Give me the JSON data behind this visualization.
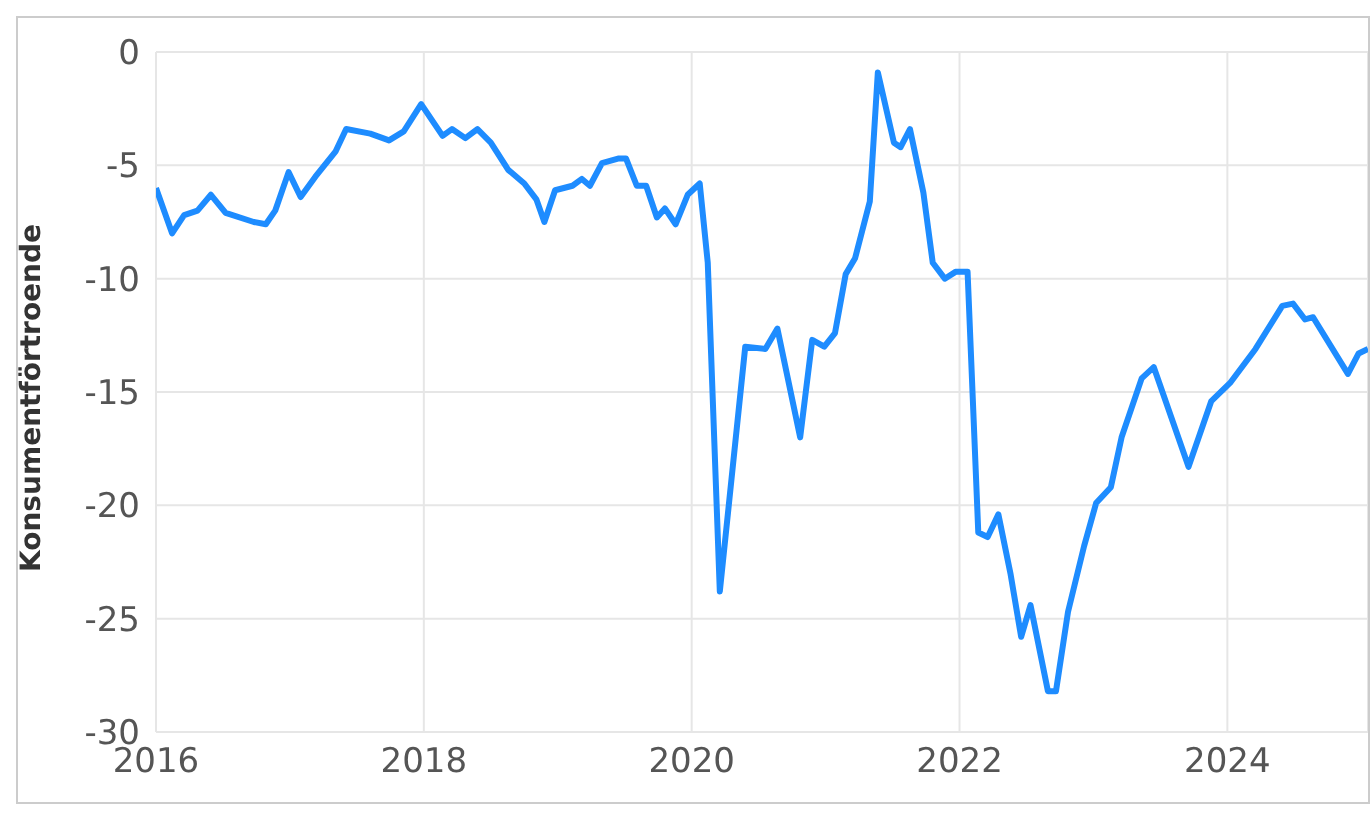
{
  "chart_data": {
    "type": "line",
    "ylabel": "Konsumentförtroende",
    "x": [
      2016.0,
      2016.12,
      2016.21,
      2016.31,
      2016.41,
      2016.52,
      2016.73,
      2016.82,
      2016.89,
      2016.99,
      2017.08,
      2017.19,
      2017.34,
      2017.42,
      2017.6,
      2017.74,
      2017.85,
      2017.98,
      2018.14,
      2018.21,
      2018.31,
      2018.4,
      2018.5,
      2018.63,
      2018.75,
      2018.84,
      2018.9,
      2018.98,
      2019.11,
      2019.18,
      2019.24,
      2019.33,
      2019.45,
      2019.51,
      2019.59,
      2019.66,
      2019.74,
      2019.8,
      2019.88,
      2019.97,
      2020.06,
      2020.12,
      2020.21,
      2020.4,
      2020.55,
      2020.64,
      2020.81,
      2020.9,
      2020.99,
      2021.07,
      2021.15,
      2021.22,
      2021.33,
      2021.39,
      2021.51,
      2021.56,
      2021.63,
      2021.73,
      2021.8,
      2021.89,
      2021.97,
      2022.06,
      2022.14,
      2022.21,
      2022.29,
      2022.38,
      2022.46,
      2022.53,
      2022.66,
      2022.72,
      2022.81,
      2022.93,
      2023.02,
      2023.13,
      2023.21,
      2023.36,
      2023.45,
      2023.71,
      2023.88,
      2024.02,
      2024.21,
      2024.41,
      2024.49,
      2024.58,
      2024.64,
      2024.9,
      2024.98,
      2025.05
    ],
    "series": [
      {
        "color": "#1e8cff",
        "values": [
          -6.0,
          -8.0,
          -7.2,
          -7.0,
          -6.3,
          -7.1,
          -7.5,
          -7.6,
          -7.0,
          -5.3,
          -6.4,
          -5.5,
          -4.4,
          -3.4,
          -3.6,
          -3.9,
          -3.5,
          -2.3,
          -3.7,
          -3.4,
          -3.8,
          -3.4,
          -4.0,
          -5.2,
          -5.8,
          -6.5,
          -7.5,
          -6.1,
          -5.9,
          -5.6,
          -5.9,
          -4.9,
          -4.7,
          -4.7,
          -5.9,
          -5.9,
          -7.3,
          -6.9,
          -7.6,
          -6.3,
          -5.8,
          -9.3,
          -23.8,
          -13.0,
          -13.1,
          -12.2,
          -17.0,
          -12.7,
          -13.0,
          -12.4,
          -9.8,
          -9.1,
          -6.6,
          -0.9,
          -4.0,
          -4.2,
          -3.4,
          -6.2,
          -9.3,
          -10.0,
          -9.7,
          -9.7,
          -21.2,
          -21.4,
          -20.4,
          -23.0,
          -25.8,
          -24.4,
          -28.2,
          -28.2,
          -24.7,
          -21.8,
          -19.9,
          -19.2,
          -17.0,
          -14.4,
          -13.9,
          -18.3,
          -15.4,
          -14.6,
          -13.1,
          -11.2,
          -11.1,
          -11.8,
          -11.7,
          -14.2,
          -13.3,
          -13.1
        ]
      }
    ],
    "xlim": [
      2016,
      2025.05
    ],
    "xticks": [
      2016,
      2018,
      2020,
      2022,
      2024
    ],
    "ylim": [
      -30,
      0
    ],
    "yticks": [
      -30,
      -25,
      -20,
      -15,
      -10,
      -5,
      0
    ],
    "grid": true,
    "legend": false,
    "marker": "none",
    "line_style": "solid"
  }
}
